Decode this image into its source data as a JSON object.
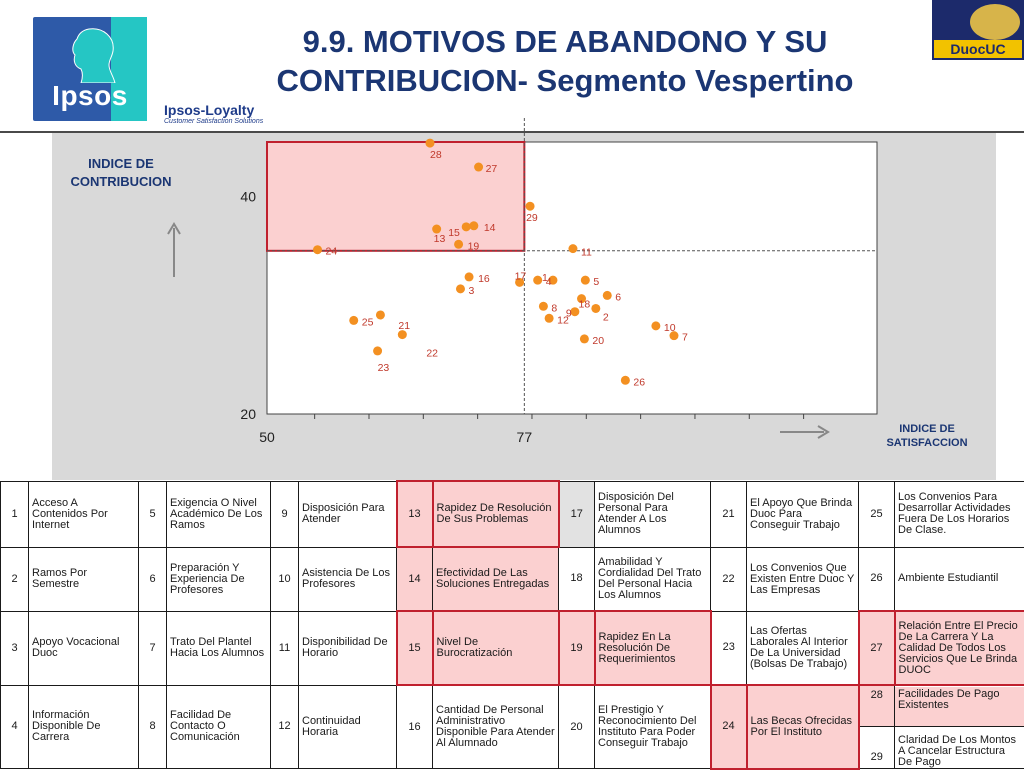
{
  "header": {
    "title_line1": "9.9. MOTIVOS DE ABANDONO Y SU",
    "title_line2": "CONTRIBUCION- Segmento Vespertino",
    "logo_word": "Ipsos",
    "loyalty": "Ipsos-Loyalty",
    "loyalty_sub": "Customer Satisfaction Solutions",
    "duoc_brand": "DuocUC"
  },
  "colors": {
    "dot": "#f39021",
    "label": "#c0392b",
    "highlight": "#fbd0d0",
    "highlight_border": "#c0202e",
    "title": "#1b3673"
  },
  "chart_data": {
    "type": "scatter",
    "ylabel": "INDICE DE CONTRIBUCION",
    "xlabel": "INDICE DE SATISFACCION",
    "x_ticks": [
      "50",
      "77"
    ],
    "y_ticks": [
      "40",
      "20"
    ],
    "xlim": [
      50,
      114
    ],
    "ylim": [
      20,
      45
    ],
    "reference_lines": {
      "x": 77,
      "y": 35
    },
    "highlight_region": {
      "x": [
        50,
        77
      ],
      "y": [
        35,
        45
      ]
    },
    "points": [
      {
        "id": "1",
        "x": 80,
        "y": 32.3
      },
      {
        "id": "2",
        "x": 84.5,
        "y": 29.7
      },
      {
        "id": "3",
        "x": 70.3,
        "y": 31.5
      },
      {
        "id": "4",
        "x": 78.4,
        "y": 32.3
      },
      {
        "id": "5",
        "x": 83.4,
        "y": 32.3
      },
      {
        "id": "6",
        "x": 85.7,
        "y": 30.9
      },
      {
        "id": "7",
        "x": 92.7,
        "y": 27.2
      },
      {
        "id": "8",
        "x": 79,
        "y": 29.9
      },
      {
        "id": "9",
        "x": 82.3,
        "y": 29.4
      },
      {
        "id": "10",
        "x": 90.8,
        "y": 28.1
      },
      {
        "id": "11",
        "x": 82.1,
        "y": 35.2
      },
      {
        "id": "12",
        "x": 79.6,
        "y": 28.8
      },
      {
        "id": "13",
        "x": 67.8,
        "y": 37
      },
      {
        "id": "14",
        "x": 71.7,
        "y": 37.3
      },
      {
        "id": "15",
        "x": 70.9,
        "y": 37.2
      },
      {
        "id": "16",
        "x": 71.2,
        "y": 32.6
      },
      {
        "id": "17",
        "x": 76.5,
        "y": 32.1
      },
      {
        "id": "18",
        "x": 83,
        "y": 30.6
      },
      {
        "id": "19",
        "x": 70.1,
        "y": 35.6
      },
      {
        "id": "20",
        "x": 83.3,
        "y": 26.9
      },
      {
        "id": "21",
        "x": 61.9,
        "y": 29.1
      },
      {
        "id": "22",
        "x": 64.2,
        "y": 27.3
      },
      {
        "id": "23",
        "x": 61.6,
        "y": 25.8
      },
      {
        "id": "24",
        "x": 55.3,
        "y": 35.1
      },
      {
        "id": "25",
        "x": 59.1,
        "y": 28.6
      },
      {
        "id": "26",
        "x": 87.6,
        "y": 23.1
      },
      {
        "id": "27",
        "x": 72.2,
        "y": 42.7
      },
      {
        "id": "28",
        "x": 67.1,
        "y": 44.9
      },
      {
        "id": "29",
        "x": 77.6,
        "y": 39.1
      }
    ]
  },
  "legend_rows": [
    [
      {
        "n": "1",
        "t": "Acceso A Contenidos Por Internet"
      },
      {
        "n": "5",
        "t": "Exigencia O Nivel Académico De Los Ramos"
      },
      {
        "n": "9",
        "t": "Disposición Para Atender"
      },
      {
        "n": "13",
        "t": "Rapidez De Resolución De Sus Problemas"
      },
      {
        "n": "17",
        "t": "Disposición Del Personal Para Atender A Los Alumnos"
      },
      {
        "n": "21",
        "t": "El Apoyo Que Brinda Duoc Para Conseguir Trabajo"
      },
      {
        "n": "25",
        "t": "Los Convenios Para Desarrollar Actividades Fuera De Los Horarios De Clase."
      }
    ],
    [
      {
        "n": "2",
        "t": "Ramos Por Semestre"
      },
      {
        "n": "6",
        "t": "Preparación Y Experiencia De Profesores"
      },
      {
        "n": "10",
        "t": "Asistencia De Los Profesores"
      },
      {
        "n": "14",
        "t": "Efectividad De Las Soluciones Entregadas"
      },
      {
        "n": "18",
        "t": "Amabilidad Y Cordialidad Del Trato Del Personal Hacia Los Alumnos"
      },
      {
        "n": "22",
        "t": "Los Convenios Que Existen Entre Duoc Y Las Empresas"
      },
      {
        "n": "26",
        "t": "Ambiente Estudiantil"
      }
    ],
    [
      {
        "n": "3",
        "t": "Apoyo Vocacional Duoc"
      },
      {
        "n": "7",
        "t": "Trato Del Plantel Hacia Los Alumnos"
      },
      {
        "n": "11",
        "t": "Disponibilidad De Horario"
      },
      {
        "n": "15",
        "t": "Nivel De Burocratización"
      },
      {
        "n": "19",
        "t": "Rapidez En La Resolución De Requerimientos"
      },
      {
        "n": "23",
        "t": "Las Ofertas Laborales Al Interior De La Universidad (Bolsas De Trabajo)"
      },
      {
        "n": "27",
        "t": "Relación Entre El Precio De La Carrera Y La Calidad De Todos Los Servicios Que Le Brinda DUOC"
      }
    ],
    [
      {
        "n": "4",
        "t": "Información Disponible De Carrera"
      },
      {
        "n": "8",
        "t": "Facilidad De Contacto O Comunicación"
      },
      {
        "n": "12",
        "t": "Continuidad Horaria"
      },
      {
        "n": "16",
        "t": "Cantidad De Personal Administrativo Disponible Para Atender Al Alumnado"
      },
      {
        "n": "20",
        "t": "El Prestigio Y Reconocimiento Del Instituto Para Poder Conseguir Trabajo"
      },
      {
        "n": "24",
        "t": "Las Becas Ofrecidas Por El Instituto"
      },
      {
        "n": "28",
        "t": "Facilidades De Pago Existentes",
        "n2": "29",
        "t2": "Claridad De Los Montos A Cancelar Estructura De Pago"
      }
    ]
  ]
}
